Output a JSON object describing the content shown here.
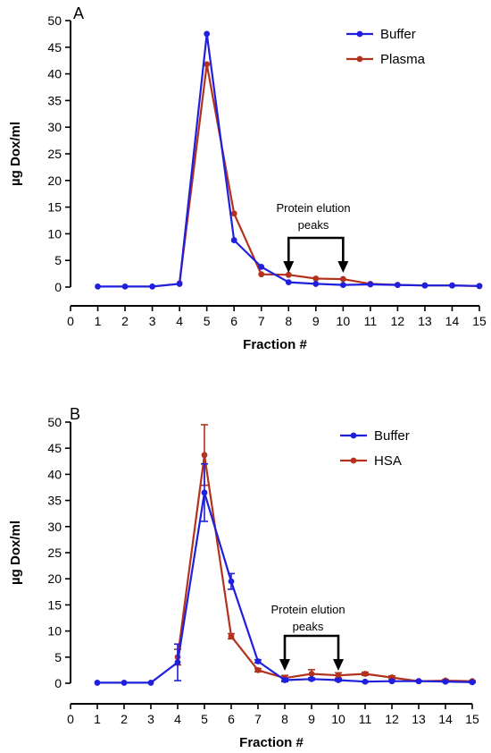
{
  "chart_data": [
    {
      "type": "line",
      "panel_label": "A",
      "xlabel": "Fraction #",
      "ylabel": "µg Dox/ml",
      "xlim": [
        0,
        15
      ],
      "ylim": [
        0,
        50
      ],
      "x_ticks": [
        0,
        1,
        2,
        3,
        4,
        5,
        6,
        7,
        8,
        9,
        10,
        11,
        12,
        13,
        14,
        15
      ],
      "y_ticks": [
        0,
        5,
        10,
        15,
        20,
        25,
        30,
        35,
        40,
        45,
        50
      ],
      "legend_position": "top-right",
      "series": [
        {
          "name": "Buffer",
          "color": "#1f1fdd",
          "x": [
            1,
            2,
            3,
            4,
            5,
            6,
            7,
            8,
            9,
            10,
            11,
            12,
            13,
            14,
            15
          ],
          "y": [
            0.1,
            0.1,
            0.1,
            0.6,
            47.5,
            8.8,
            3.8,
            0.9,
            0.6,
            0.4,
            0.5,
            0.4,
            0.3,
            0.3,
            0.2
          ]
        },
        {
          "name": "Plasma",
          "color": "#b3321e",
          "x": [
            4,
            5,
            6,
            7,
            8,
            9,
            10,
            11,
            12,
            13,
            14,
            15
          ],
          "y": [
            0.7,
            41.8,
            13.8,
            2.4,
            2.3,
            1.6,
            1.5,
            0.6,
            0.4,
            0.3,
            0.3,
            0.2
          ]
        }
      ],
      "annotation": {
        "text_lines": [
          "Protein elution",
          "peaks"
        ],
        "arrow_x": [
          8,
          10
        ]
      }
    },
    {
      "type": "line",
      "panel_label": "B",
      "xlabel": "Fraction #",
      "ylabel": "µg Dox/ml",
      "xlim": [
        0,
        15
      ],
      "ylim": [
        0,
        50
      ],
      "x_ticks": [
        0,
        1,
        2,
        3,
        4,
        5,
        6,
        7,
        8,
        9,
        10,
        11,
        12,
        13,
        14,
        15
      ],
      "y_ticks": [
        0,
        5,
        10,
        15,
        20,
        25,
        30,
        35,
        40,
        45,
        50
      ],
      "legend_position": "top-right",
      "series": [
        {
          "name": "Buffer",
          "color": "#1f1fdd",
          "x": [
            1,
            2,
            3,
            4,
            5,
            6,
            7,
            8,
            9,
            10,
            11,
            12,
            13,
            14,
            15
          ],
          "y": [
            0.1,
            0.1,
            0.1,
            4.0,
            36.5,
            19.5,
            4.2,
            0.6,
            0.8,
            0.6,
            0.3,
            0.4,
            0.4,
            0.3,
            0.2
          ],
          "err": [
            0,
            0,
            0,
            3.5,
            5.5,
            1.5,
            0.3,
            0.3,
            0.2,
            0.2,
            0.1,
            0.1,
            0.1,
            0.1,
            0.1
          ]
        },
        {
          "name": "HSA",
          "color": "#b3321e",
          "x": [
            4,
            5,
            6,
            7,
            8,
            9,
            10,
            11,
            12,
            13,
            14,
            15
          ],
          "y": [
            5.0,
            43.7,
            9.0,
            2.5,
            1.0,
            1.8,
            1.5,
            1.8,
            1.1,
            0.4,
            0.5,
            0.4
          ],
          "err": [
            1.5,
            5.8,
            0.5,
            0.3,
            0.5,
            0.8,
            0.5,
            0.3,
            0.3,
            0.1,
            0.2,
            0.1
          ]
        }
      ],
      "annotation": {
        "text_lines": [
          "Protein elution",
          "peaks"
        ],
        "arrow_x": [
          8,
          10
        ]
      }
    }
  ]
}
